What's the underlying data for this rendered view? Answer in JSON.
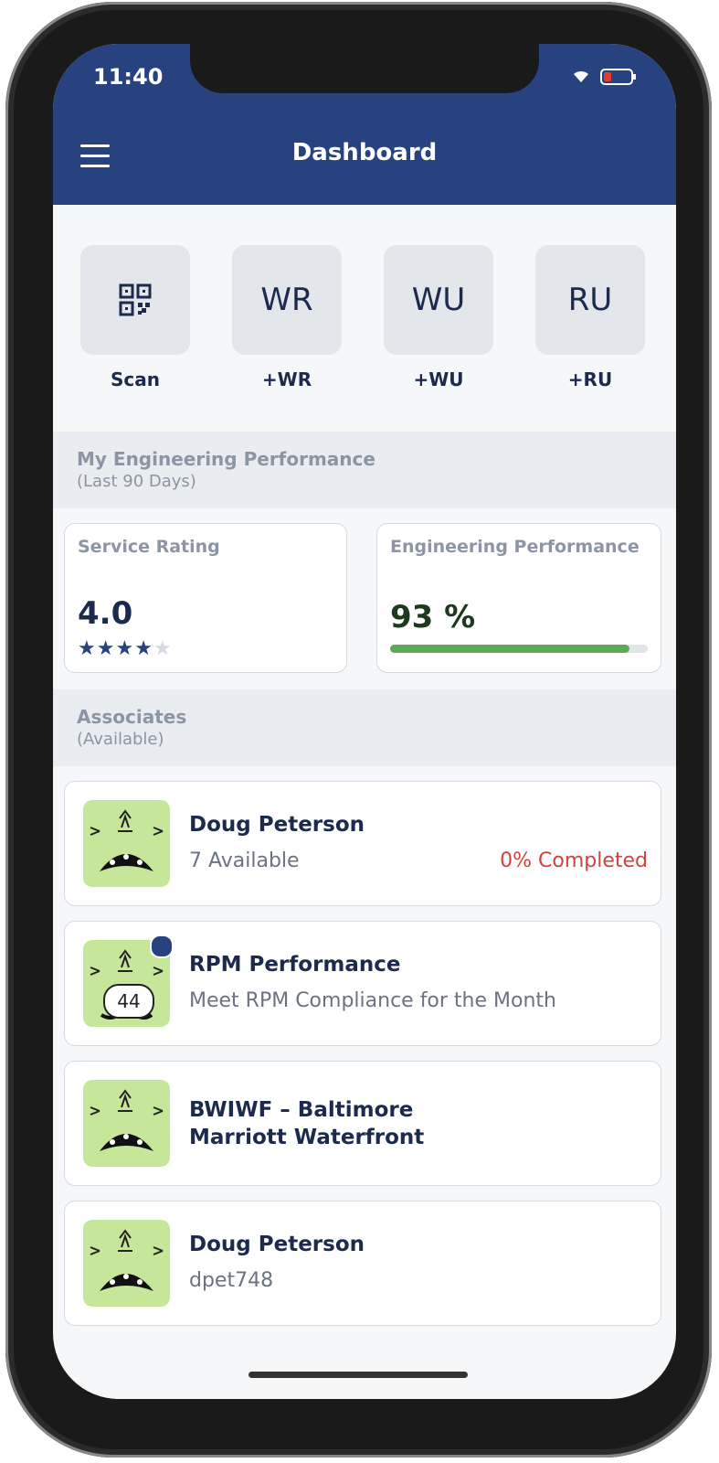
{
  "status_bar": {
    "time": "11:40"
  },
  "header": {
    "title": "Dashboard"
  },
  "quick_actions": [
    {
      "label": "Scan"
    },
    {
      "icon_text": "WR",
      "label": "+WR"
    },
    {
      "icon_text": "WU",
      "label": "+WU"
    },
    {
      "icon_text": "RU",
      "label": "+RU"
    }
  ],
  "performance": {
    "title": "My Engineering Performance",
    "subtitle": "(Last 90 Days)",
    "service_rating": {
      "label": "Service Rating",
      "value": "4.0",
      "stars": 4,
      "stars_max": 5
    },
    "engineering": {
      "label": "Engineering Performance",
      "value": 93,
      "value_label": "93 %"
    }
  },
  "associates": {
    "title": "Associates",
    "subtitle": "(Available)",
    "items": [
      {
        "name": "Doug Peterson",
        "detail": "7 Available",
        "status": "0% Completed"
      },
      {
        "name": "RPM Performance",
        "detail": "Meet RPM Compliance for the Month",
        "badge": "44"
      },
      {
        "name": "BWIWF – Baltimore Marriott Waterfront"
      },
      {
        "name": "Doug Peterson",
        "detail": "dpet748"
      }
    ]
  }
}
